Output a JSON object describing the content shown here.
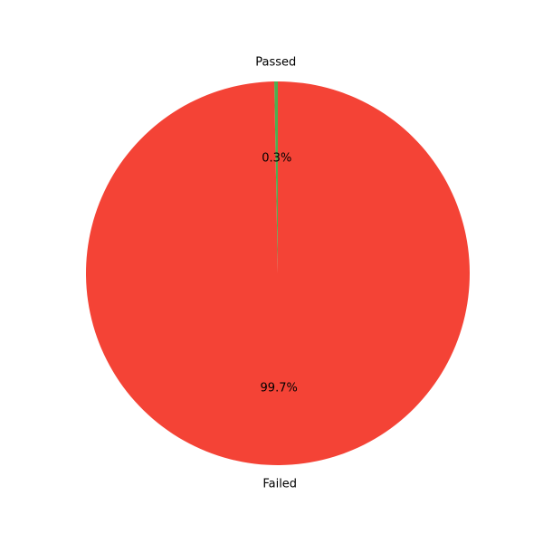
{
  "chart_data": {
    "type": "pie",
    "slices": [
      {
        "label": "Passed",
        "percent_label": "0.3%",
        "value": 0.3,
        "color": "#4caf50"
      },
      {
        "label": "Failed",
        "percent_label": "99.7%",
        "value": 99.7,
        "color": "#f44336"
      }
    ],
    "start_angle_deg": 90,
    "direction": "counterclockwise",
    "legend": "none"
  }
}
